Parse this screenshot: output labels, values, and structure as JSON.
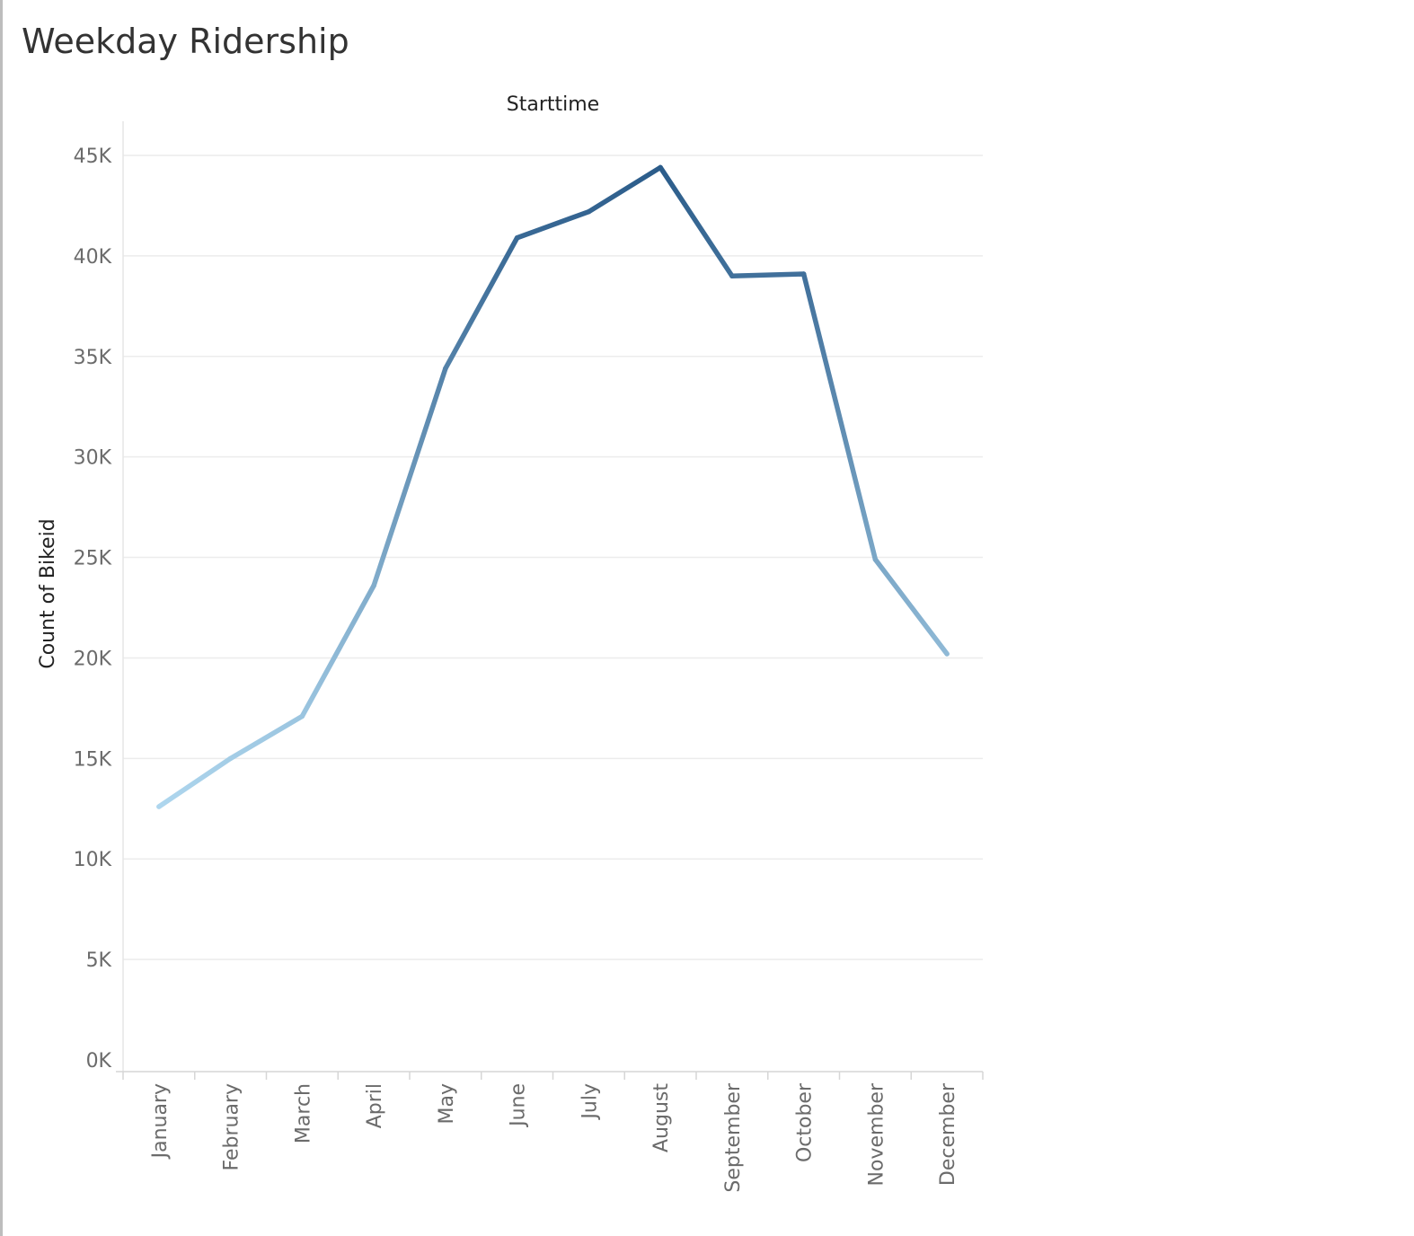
{
  "page": {
    "title": "Weekday Ridership"
  },
  "chart_data": {
    "type": "line",
    "title": "Weekday Ridership",
    "column_header": "Starttime",
    "xlabel": "",
    "ylabel": "Count of Bikeid",
    "categories": [
      "January",
      "February",
      "March",
      "April",
      "May",
      "June",
      "July",
      "August",
      "September",
      "October",
      "November",
      "December"
    ],
    "series": [
      {
        "values": [
          12600,
          15000,
          17100,
          23600,
          34400,
          40900,
          42200,
          44400,
          39000,
          39100,
          24900,
          20200
        ]
      }
    ],
    "ylim": [
      0,
      46500
    ],
    "yticks": [
      0,
      5000,
      10000,
      15000,
      20000,
      25000,
      30000,
      35000,
      40000,
      45000
    ],
    "ytick_labels": [
      "0K",
      "5K",
      "10K",
      "15K",
      "20K",
      "25K",
      "30K",
      "35K",
      "40K",
      "45K"
    ],
    "grid": "horizontal",
    "colors": {
      "low": "#aed6ee",
      "high": "#2b5c8a",
      "gridline": "#ececec",
      "axis_text": "#6b6b6b",
      "label_text": "#222222"
    }
  }
}
